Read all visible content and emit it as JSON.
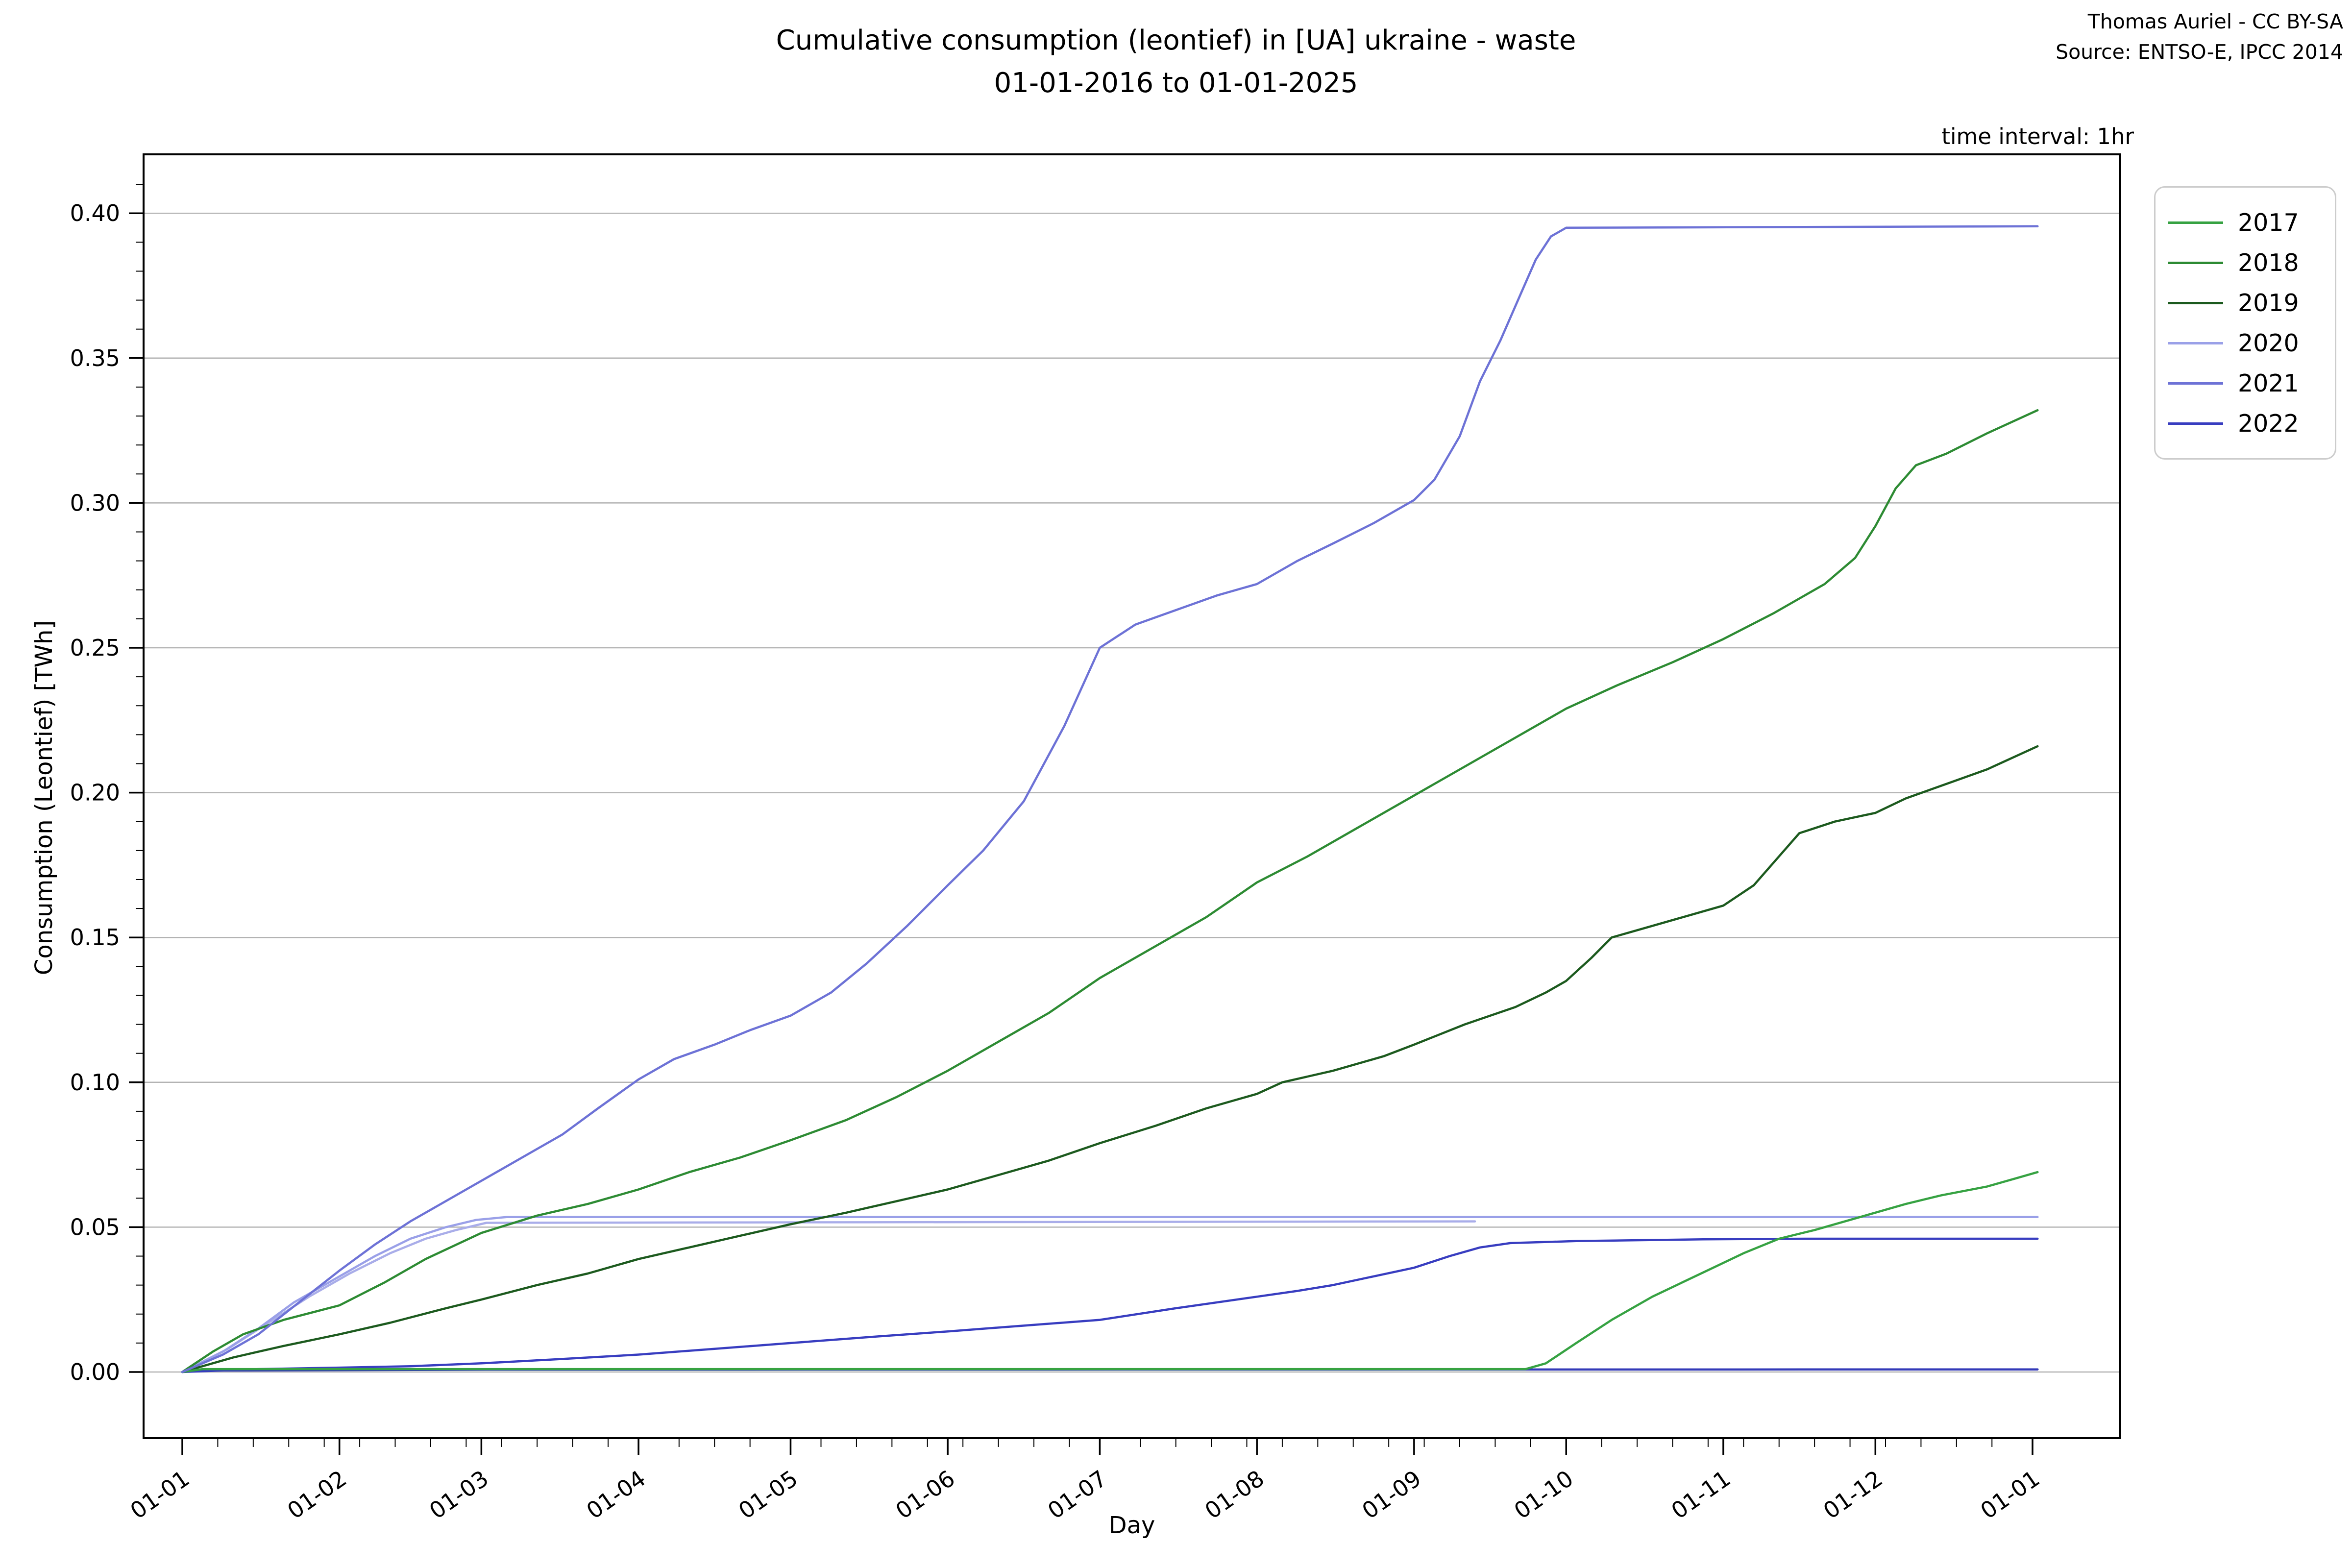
{
  "title": {
    "line1": "Cumulative consumption (leontief) in [UA] ukraine - waste",
    "line2": "01-01-2016 to 01-01-2025"
  },
  "attribution": {
    "line1": "Thomas Auriel - CC BY-SA",
    "line2": "Source: ENTSO-E, IPCC 2014"
  },
  "plot_note": "time interval: 1hr",
  "axes": {
    "xlabel": "Day",
    "ylabel": "Consumption (Leontief) [TWh]",
    "xtick_labels": [
      "01-01",
      "01-02",
      "01-03",
      "01-04",
      "01-05",
      "01-06",
      "01-07",
      "01-08",
      "01-09",
      "01-10",
      "01-11",
      "01-12",
      "01-01"
    ],
    "ytick_labels": [
      "0.00",
      "0.05",
      "0.10",
      "0.15",
      "0.20",
      "0.25",
      "0.30",
      "0.35",
      "0.40"
    ]
  },
  "legend": {
    "items": [
      {
        "label": "2017",
        "color": "#36a242"
      },
      {
        "label": "2018",
        "color": "#2d8b33"
      },
      {
        "label": "2019",
        "color": "#1c5a1e"
      },
      {
        "label": "2020",
        "color": "#9aa0e8"
      },
      {
        "label": "2021",
        "color": "#6d72d6"
      },
      {
        "label": "2022",
        "color": "#383dc0"
      }
    ]
  },
  "chart_data": {
    "type": "line",
    "title": "Cumulative consumption (leontief) in [UA] ukraine - waste 01-01-2016 to 01-01-2025",
    "xlabel": "Day",
    "ylabel": "Consumption (Leontief) [TWh]",
    "x_unit": "day of year (all years overlaid)",
    "ylim": [
      -0.023,
      0.42
    ],
    "grid": "horizontal major gridlines at 0.05 steps, color #b3b3b3",
    "legend_position": "upper right, outside plot",
    "yticks": [
      0.0,
      0.05,
      0.1,
      0.15,
      0.2,
      0.25,
      0.3,
      0.35,
      0.4
    ],
    "series": [
      {
        "name": "2017",
        "color": "#36a242",
        "in_legend": true,
        "description": "near zero until late September, then rises",
        "points": [
          [
            0,
            0
          ],
          [
            4,
            0.001
          ],
          [
            265,
            0.001
          ],
          [
            269,
            0.003
          ],
          [
            275,
            0.01
          ],
          [
            282,
            0.018
          ],
          [
            290,
            0.026
          ],
          [
            296,
            0.031
          ],
          [
            302,
            0.036
          ],
          [
            308,
            0.041
          ],
          [
            315,
            0.046
          ],
          [
            322,
            0.049
          ],
          [
            328,
            0.052
          ],
          [
            334,
            0.055
          ],
          [
            340,
            0.058
          ],
          [
            347,
            0.061
          ],
          [
            356,
            0.064
          ],
          [
            362,
            0.067
          ],
          [
            366,
            0.069
          ]
        ]
      },
      {
        "name": "2018",
        "color": "#2d8b33",
        "in_legend": true,
        "description": "steady rise all year to 0.332",
        "points": [
          [
            0,
            0
          ],
          [
            6,
            0.007
          ],
          [
            12,
            0.013
          ],
          [
            20,
            0.018
          ],
          [
            31,
            0.023
          ],
          [
            40,
            0.031
          ],
          [
            48,
            0.039
          ],
          [
            59,
            0.048
          ],
          [
            70,
            0.054
          ],
          [
            80,
            0.058
          ],
          [
            90,
            0.063
          ],
          [
            100,
            0.069
          ],
          [
            110,
            0.074
          ],
          [
            120,
            0.08
          ],
          [
            131,
            0.087
          ],
          [
            141,
            0.095
          ],
          [
            151,
            0.104
          ],
          [
            161,
            0.114
          ],
          [
            171,
            0.124
          ],
          [
            181,
            0.136
          ],
          [
            192,
            0.147
          ],
          [
            202,
            0.157
          ],
          [
            212,
            0.169
          ],
          [
            222,
            0.178
          ],
          [
            232,
            0.188
          ],
          [
            243,
            0.199
          ],
          [
            253,
            0.209
          ],
          [
            263,
            0.219
          ],
          [
            273,
            0.229
          ],
          [
            283,
            0.237
          ],
          [
            294,
            0.245
          ],
          [
            304,
            0.253
          ],
          [
            314,
            0.262
          ],
          [
            324,
            0.272
          ],
          [
            330,
            0.281
          ],
          [
            334,
            0.292
          ],
          [
            338,
            0.305
          ],
          [
            342,
            0.313
          ],
          [
            348,
            0.317
          ],
          [
            356,
            0.324
          ],
          [
            366,
            0.332
          ]
        ]
      },
      {
        "name": "2019",
        "color": "#1c5a1e",
        "in_legend": true,
        "description": "steady rise all year to 0.216",
        "points": [
          [
            0,
            0
          ],
          [
            10,
            0.005
          ],
          [
            20,
            0.009
          ],
          [
            31,
            0.013
          ],
          [
            41,
            0.017
          ],
          [
            52,
            0.022
          ],
          [
            59,
            0.025
          ],
          [
            70,
            0.03
          ],
          [
            80,
            0.034
          ],
          [
            90,
            0.039
          ],
          [
            100,
            0.043
          ],
          [
            110,
            0.047
          ],
          [
            120,
            0.051
          ],
          [
            131,
            0.055
          ],
          [
            141,
            0.059
          ],
          [
            151,
            0.063
          ],
          [
            161,
            0.068
          ],
          [
            171,
            0.073
          ],
          [
            181,
            0.079
          ],
          [
            192,
            0.085
          ],
          [
            202,
            0.091
          ],
          [
            212,
            0.096
          ],
          [
            217,
            0.1
          ],
          [
            227,
            0.104
          ],
          [
            237,
            0.109
          ],
          [
            243,
            0.113
          ],
          [
            253,
            0.12
          ],
          [
            263,
            0.126
          ],
          [
            269,
            0.131
          ],
          [
            273,
            0.135
          ],
          [
            278,
            0.143
          ],
          [
            282,
            0.15
          ],
          [
            290,
            0.154
          ],
          [
            298,
            0.158
          ],
          [
            304,
            0.161
          ],
          [
            310,
            0.168
          ],
          [
            315,
            0.178
          ],
          [
            319,
            0.186
          ],
          [
            326,
            0.19
          ],
          [
            334,
            0.193
          ],
          [
            340,
            0.198
          ],
          [
            348,
            0.203
          ],
          [
            356,
            0.208
          ],
          [
            366,
            0.216
          ]
        ]
      },
      {
        "name": "2020",
        "color": "#9aa0e8",
        "in_legend": true,
        "description": "rises Jan-Feb then flat just above 0.05 to year end",
        "points": [
          [
            0,
            0
          ],
          [
            8,
            0.007
          ],
          [
            15,
            0.015
          ],
          [
            22,
            0.024
          ],
          [
            31,
            0.033
          ],
          [
            38,
            0.04
          ],
          [
            45,
            0.046
          ],
          [
            52,
            0.05
          ],
          [
            58,
            0.0525
          ],
          [
            64,
            0.0535
          ],
          [
            366,
            0.0535
          ]
        ]
      },
      {
        "name": "2021",
        "color": "#6d72d6",
        "in_legend": true,
        "description": "steep rise all year, plateau at 0.395 from late September",
        "points": [
          [
            0,
            0
          ],
          [
            8,
            0.006
          ],
          [
            15,
            0.013
          ],
          [
            23,
            0.024
          ],
          [
            31,
            0.035
          ],
          [
            38,
            0.044
          ],
          [
            45,
            0.052
          ],
          [
            52,
            0.059
          ],
          [
            59,
            0.066
          ],
          [
            68,
            0.075
          ],
          [
            75,
            0.082
          ],
          [
            82,
            0.091
          ],
          [
            90,
            0.101
          ],
          [
            97,
            0.108
          ],
          [
            105,
            0.113
          ],
          [
            112,
            0.118
          ],
          [
            120,
            0.123
          ],
          [
            128,
            0.131
          ],
          [
            135,
            0.141
          ],
          [
            143,
            0.154
          ],
          [
            151,
            0.168
          ],
          [
            158,
            0.18
          ],
          [
            166,
            0.197
          ],
          [
            174,
            0.223
          ],
          [
            181,
            0.25
          ],
          [
            188,
            0.258
          ],
          [
            196,
            0.263
          ],
          [
            204,
            0.268
          ],
          [
            212,
            0.272
          ],
          [
            220,
            0.28
          ],
          [
            227,
            0.286
          ],
          [
            235,
            0.293
          ],
          [
            243,
            0.301
          ],
          [
            247,
            0.308
          ],
          [
            252,
            0.323
          ],
          [
            256,
            0.342
          ],
          [
            260,
            0.356
          ],
          [
            264,
            0.372
          ],
          [
            267,
            0.384
          ],
          [
            270,
            0.392
          ],
          [
            273,
            0.395
          ],
          [
            366,
            0.3955
          ]
        ]
      },
      {
        "name": "2022",
        "color": "#383dc0",
        "in_legend": true,
        "description": "slow rise, flattens near 0.046 from September",
        "points": [
          [
            0,
            0
          ],
          [
            15,
            0.001
          ],
          [
            31,
            0.0015
          ],
          [
            45,
            0.002
          ],
          [
            59,
            0.003
          ],
          [
            75,
            0.0045
          ],
          [
            90,
            0.006
          ],
          [
            105,
            0.008
          ],
          [
            120,
            0.01
          ],
          [
            135,
            0.012
          ],
          [
            151,
            0.014
          ],
          [
            166,
            0.016
          ],
          [
            181,
            0.018
          ],
          [
            196,
            0.022
          ],
          [
            212,
            0.026
          ],
          [
            220,
            0.028
          ],
          [
            227,
            0.03
          ],
          [
            235,
            0.033
          ],
          [
            243,
            0.036
          ],
          [
            250,
            0.04
          ],
          [
            256,
            0.043
          ],
          [
            262,
            0.0445
          ],
          [
            275,
            0.0452
          ],
          [
            300,
            0.0458
          ],
          [
            320,
            0.046
          ],
          [
            366,
            0.046
          ]
        ]
      },
      {
        "name": "(unlabeled light-blue flat)",
        "color": "#a9ade9",
        "in_legend": false,
        "description": "rises Jan-Feb, flat at 0.052, ends mid-September",
        "points": [
          [
            0,
            0
          ],
          [
            9,
            0.008
          ],
          [
            17,
            0.017
          ],
          [
            25,
            0.026
          ],
          [
            33,
            0.034
          ],
          [
            41,
            0.041
          ],
          [
            48,
            0.046
          ],
          [
            54,
            0.049
          ],
          [
            60,
            0.0515
          ],
          [
            255,
            0.052
          ]
        ]
      },
      {
        "name": "(unlabeled near-zero flat)",
        "color": "#333ab8",
        "in_legend": false,
        "description": "flat near zero across whole year",
        "points": [
          [
            0,
            0
          ],
          [
            3,
            0.0005
          ],
          [
            60,
            0.0008
          ],
          [
            366,
            0.0009
          ]
        ]
      }
    ]
  }
}
